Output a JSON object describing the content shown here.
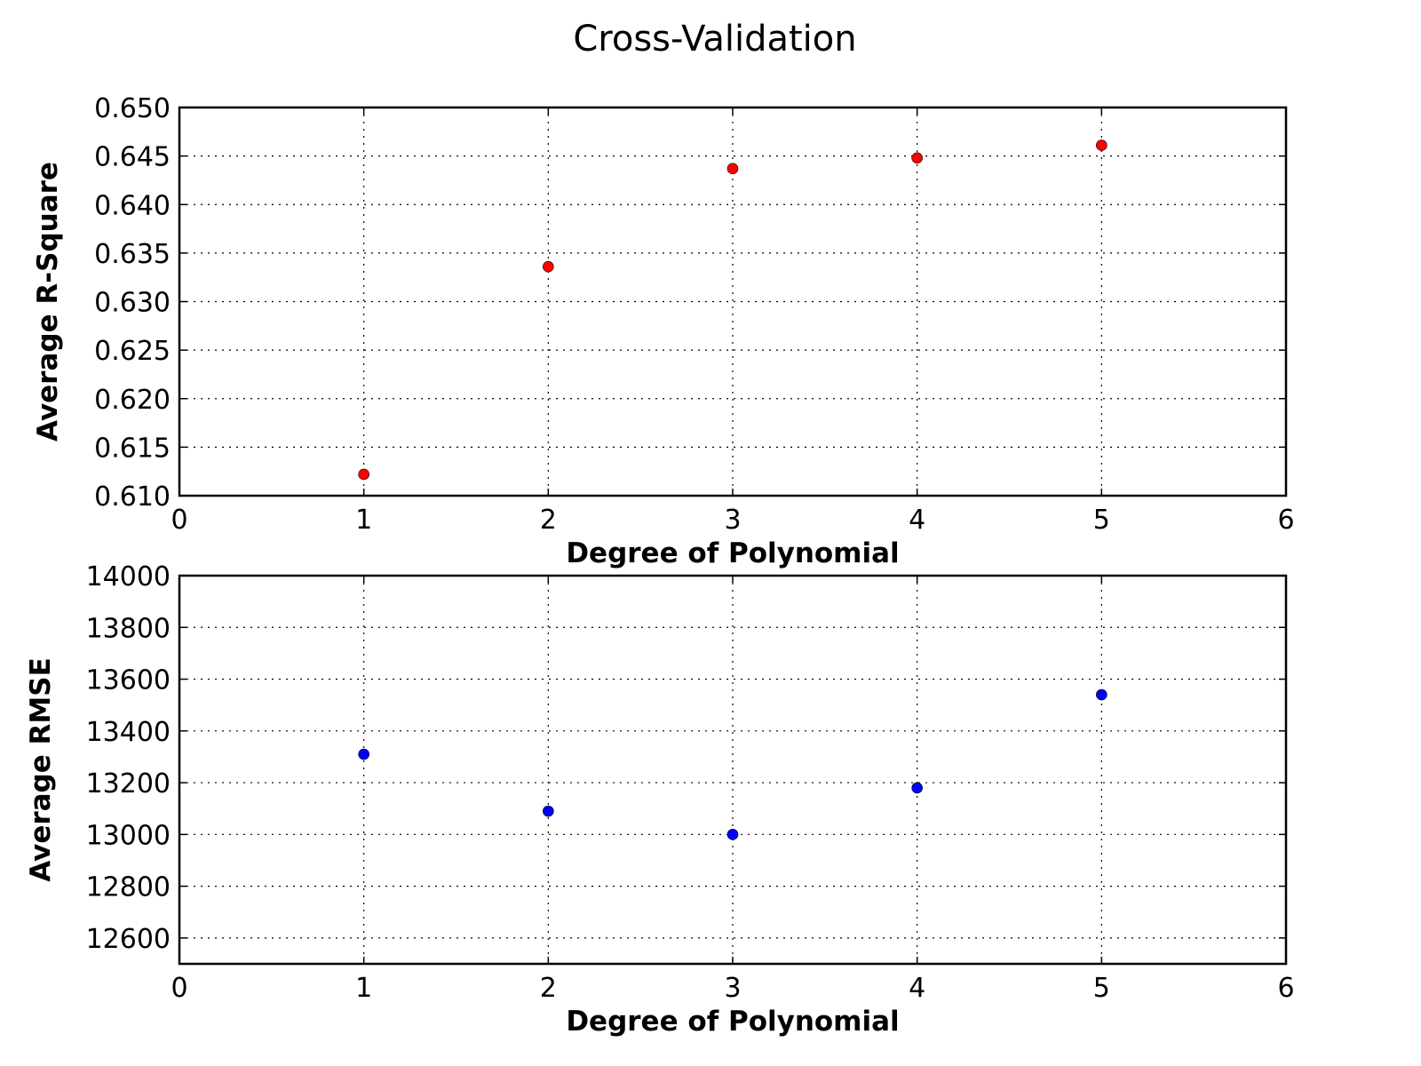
{
  "figure": {
    "title": "Cross-Validation"
  },
  "chart_data": [
    {
      "type": "scatter",
      "xlabel": "Degree of Polynomial",
      "ylabel": "Average R-Square",
      "xlim": [
        0,
        6
      ],
      "ylim": [
        0.61,
        0.65
      ],
      "xticks": [
        "0",
        "1",
        "2",
        "3",
        "4",
        "5",
        "6"
      ],
      "yticks": [
        "0.610",
        "0.615",
        "0.620",
        "0.625",
        "0.630",
        "0.635",
        "0.640",
        "0.645",
        "0.650"
      ],
      "grid": true,
      "color": "#ff0000",
      "x": [
        1,
        2,
        3,
        4,
        5
      ],
      "y": [
        0.6122,
        0.6336,
        0.6437,
        0.6448,
        0.6461
      ]
    },
    {
      "type": "scatter",
      "xlabel": "Degree of Polynomial",
      "ylabel": "Average RMSE",
      "xlim": [
        0,
        6
      ],
      "ylim": [
        12500,
        14000
      ],
      "xticks": [
        "0",
        "1",
        "2",
        "3",
        "4",
        "5",
        "6"
      ],
      "yticks": [
        "12600",
        "12800",
        "13000",
        "13200",
        "13400",
        "13600",
        "13800",
        "14000"
      ],
      "grid": true,
      "color": "#0000ff",
      "x": [
        1,
        2,
        3,
        4,
        5
      ],
      "y": [
        13310,
        13090,
        13000,
        13180,
        13540
      ]
    }
  ]
}
